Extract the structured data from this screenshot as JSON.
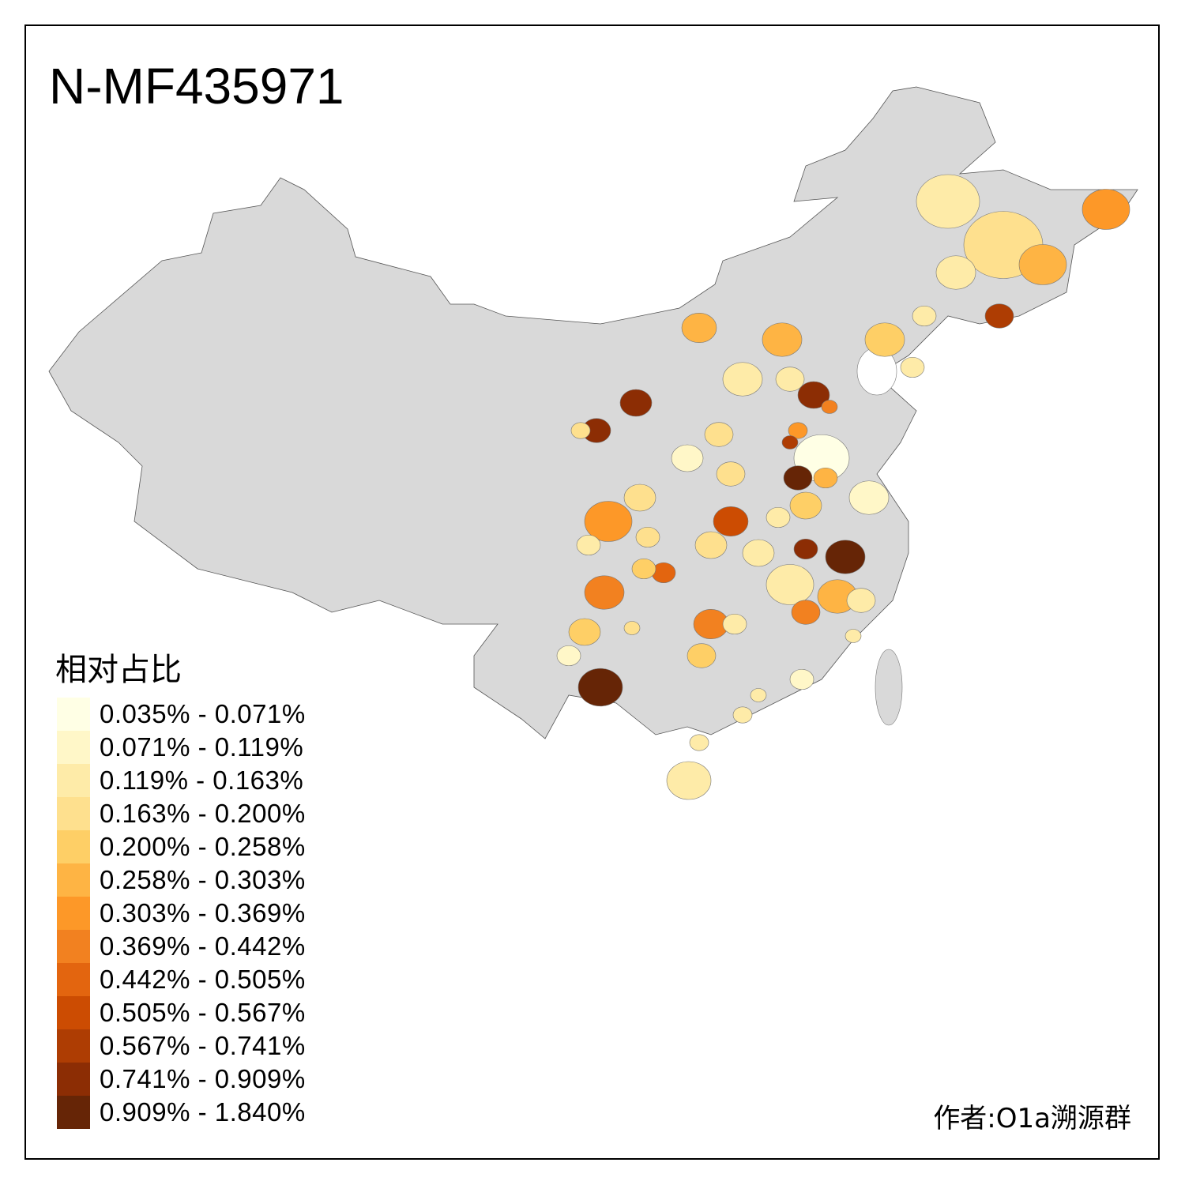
{
  "title": "N-MF435971",
  "legend": {
    "title": "相对占比",
    "items": [
      {
        "label": "0.035% - 0.071%",
        "color": "#FFFFE5"
      },
      {
        "label": "0.071% - 0.119%",
        "color": "#FFF7C8"
      },
      {
        "label": "0.119% - 0.163%",
        "color": "#FEEBA8"
      },
      {
        "label": "0.163% - 0.200%",
        "color": "#FEE08E"
      },
      {
        "label": "0.200% - 0.258%",
        "color": "#FECF66"
      },
      {
        "label": "0.258% - 0.303%",
        "color": "#FEB444"
      },
      {
        "label": "0.303% - 0.369%",
        "color": "#FD9828"
      },
      {
        "label": "0.369% - 0.442%",
        "color": "#F28120"
      },
      {
        "label": "0.442% - 0.505%",
        "color": "#E3650F"
      },
      {
        "label": "0.505% - 0.567%",
        "color": "#CC4C02"
      },
      {
        "label": "0.567% - 0.741%",
        "color": "#AE3D03"
      },
      {
        "label": "0.741% - 0.909%",
        "color": "#8C2D04"
      },
      {
        "label": "0.909% - 1.840%",
        "color": "#662506"
      }
    ]
  },
  "no_data_color": "#D9D9D9",
  "author": "作者:O1a溯源群"
}
